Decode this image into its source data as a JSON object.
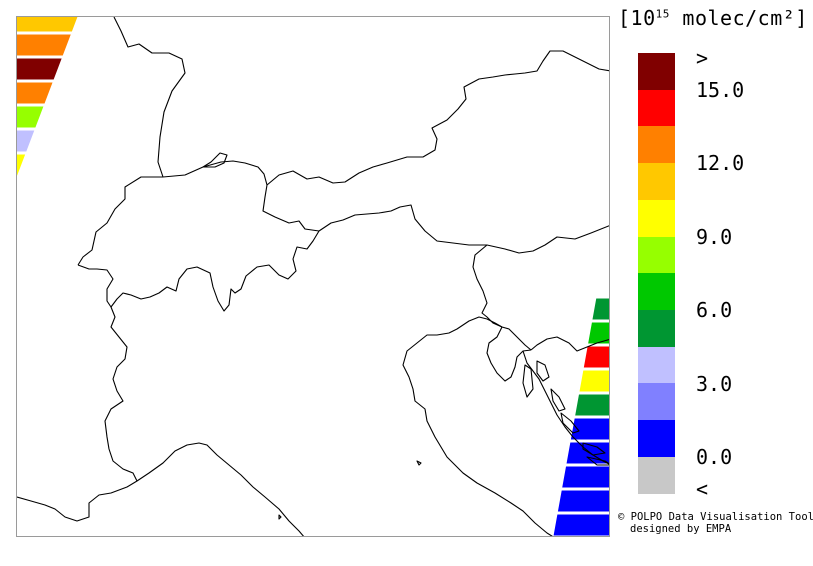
{
  "legend": {
    "title_prefix": "[10",
    "title_exponent": "15",
    "title_suffix": " molec/cm²]",
    "color_scale": [
      {
        "range": "above 15",
        "color": "#800000"
      },
      {
        "range": "13.5-15",
        "color": "#ff0000"
      },
      {
        "range": "12-13.5",
        "color": "#ff8000"
      },
      {
        "range": "10.5-12",
        "color": "#ffc800"
      },
      {
        "range": "9-10.5",
        "color": "#ffff00"
      },
      {
        "range": "7.5-9",
        "color": "#96ff00"
      },
      {
        "range": "6-7.5",
        "color": "#00c800"
      },
      {
        "range": "4.5-6",
        "color": "#009632"
      },
      {
        "range": "3-4.5",
        "color": "#c0c0ff"
      },
      {
        "range": "1.5-3",
        "color": "#8080ff"
      },
      {
        "range": "0-1.5",
        "color": "#0000ff"
      },
      {
        "range": "below 0",
        "color": "#c8c8c8"
      }
    ],
    "labels": [
      ">",
      "15.0",
      "12.0",
      "9.0",
      "6.0",
      "3.0",
      "0.0",
      "<"
    ]
  },
  "credits": {
    "line1": "© POLPO Data Visualisation Tool",
    "line2": "designed by EMPA"
  },
  "map": {
    "region": "Alpine region (northern Italy, Switzerland, Austria, Slovenia, Croatia coast)",
    "satellite_swaths": {
      "northwest": [
        "#ffc800",
        "#ff8000",
        "#800000",
        "#ff8000",
        "#96ff00",
        "#c0c0ff",
        "#ffff00"
      ],
      "east": [
        "#009632",
        "#00c800",
        "#ff0000",
        "#ffff00",
        "#009632",
        "#0000ff",
        "#0000ff",
        "#0000ff",
        "#0000ff",
        "#0000ff",
        "#0000ff"
      ]
    }
  }
}
